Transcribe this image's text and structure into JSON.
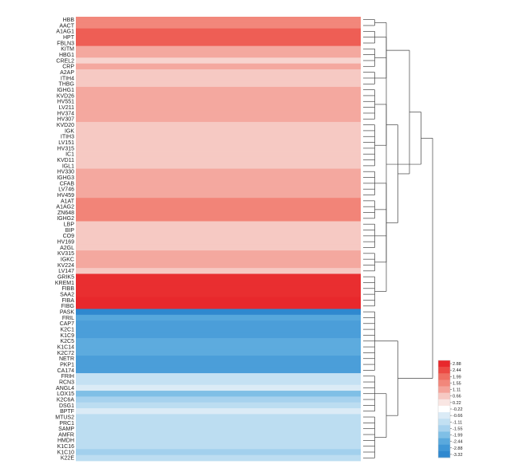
{
  "chart_data": {
    "type": "heatmap",
    "title": "",
    "xlabel": "",
    "ylabel": "",
    "dendrogram": "row",
    "rows": [
      {
        "label": "HBB",
        "value": 1.55
      },
      {
        "label": "AACT",
        "value": 1.55
      },
      {
        "label": "A1AG1",
        "value": 2.2
      },
      {
        "label": "HPT",
        "value": 2.2
      },
      {
        "label": "FBLN3",
        "value": 2.2
      },
      {
        "label": "KITM",
        "value": 1.05
      },
      {
        "label": "HBG1",
        "value": 1.05
      },
      {
        "label": "CREL2",
        "value": 0.5
      },
      {
        "label": "CRP",
        "value": 1.05
      },
      {
        "label": "A2AP",
        "value": 0.66
      },
      {
        "label": "ITIH4",
        "value": 0.66
      },
      {
        "label": "THBG",
        "value": 0.66
      },
      {
        "label": "IGHG1",
        "value": 1.05
      },
      {
        "label": "KVD26",
        "value": 1.05
      },
      {
        "label": "HV551",
        "value": 1.05
      },
      {
        "label": "LV211",
        "value": 1.05
      },
      {
        "label": "HV374",
        "value": 1.05
      },
      {
        "label": "HV307",
        "value": 1.05
      },
      {
        "label": "KVD20",
        "value": 0.66
      },
      {
        "label": "IGK",
        "value": 0.66
      },
      {
        "label": "ITIH3",
        "value": 0.66
      },
      {
        "label": "LV151",
        "value": 0.66
      },
      {
        "label": "HV315",
        "value": 0.66
      },
      {
        "label": "IC1",
        "value": 0.66
      },
      {
        "label": "KVD11",
        "value": 0.66
      },
      {
        "label": "IGL1",
        "value": 0.66
      },
      {
        "label": "HV330",
        "value": 1.05
      },
      {
        "label": "IGHG3",
        "value": 1.05
      },
      {
        "label": "CFAB",
        "value": 1.05
      },
      {
        "label": "LV746",
        "value": 1.05
      },
      {
        "label": "HV459",
        "value": 1.05
      },
      {
        "label": "A1AT",
        "value": 1.6
      },
      {
        "label": "A1AG2",
        "value": 1.6
      },
      {
        "label": "ZN648",
        "value": 1.6
      },
      {
        "label": "IGHG2",
        "value": 1.6
      },
      {
        "label": "LBP",
        "value": 0.66
      },
      {
        "label": "BIP",
        "value": 0.66
      },
      {
        "label": "CO9",
        "value": 0.66
      },
      {
        "label": "HV169",
        "value": 0.66
      },
      {
        "label": "A2GL",
        "value": 0.66
      },
      {
        "label": "KV315",
        "value": 1.05
      },
      {
        "label": "IGKC",
        "value": 1.05
      },
      {
        "label": "KV224",
        "value": 1.05
      },
      {
        "label": "LV147",
        "value": 0.66
      },
      {
        "label": "GRIK5",
        "value": 2.8
      },
      {
        "label": "KREM1",
        "value": 2.8
      },
      {
        "label": "FIBB",
        "value": 2.8
      },
      {
        "label": "SAA2",
        "value": 2.8
      },
      {
        "label": "FIBA",
        "value": 2.88
      },
      {
        "label": "FIBG",
        "value": 2.88
      },
      {
        "label": "PASK",
        "value": -3.32
      },
      {
        "label": "FRIL",
        "value": -2.5
      },
      {
        "label": "CAP7",
        "value": -2.7
      },
      {
        "label": "K2C1",
        "value": -2.7
      },
      {
        "label": "K1C9",
        "value": -2.7
      },
      {
        "label": "K2C5",
        "value": -2.4
      },
      {
        "label": "K1C14",
        "value": -2.4
      },
      {
        "label": "K2C72",
        "value": -2.4
      },
      {
        "label": "NETR",
        "value": -2.7
      },
      {
        "label": "PKP1",
        "value": -2.7
      },
      {
        "label": "CA174",
        "value": -2.7
      },
      {
        "label": "FRIH",
        "value": -1.05
      },
      {
        "label": "RCN3",
        "value": -1.05
      },
      {
        "label": "ANGL4",
        "value": -0.66
      },
      {
        "label": "LOX15",
        "value": -1.99
      },
      {
        "label": "K2C6A",
        "value": -1.55
      },
      {
        "label": "DSG1",
        "value": -1.2
      },
      {
        "label": "BPTF",
        "value": -0.66
      },
      {
        "label": "MTUS2",
        "value": -1.2
      },
      {
        "label": "PRC1",
        "value": -1.2
      },
      {
        "label": "SAMP",
        "value": -1.2
      },
      {
        "label": "AMFR",
        "value": -1.2
      },
      {
        "label": "HMDH",
        "value": -1.2
      },
      {
        "label": "K1C16",
        "value": -1.2
      },
      {
        "label": "K1C10",
        "value": -1.6
      },
      {
        "label": "K22E",
        "value": -1.2
      }
    ],
    "color_scale": {
      "ticks": [
        "2.88",
        "2.44",
        "1.99",
        "1.55",
        "1.11",
        "0.66",
        "0.22",
        "-0.22",
        "-0.66",
        "-1.11",
        "-1.55",
        "-1.99",
        "-2.44",
        "-2.88",
        "-3.32"
      ],
      "stops": [
        {
          "value": 2.88,
          "color": "#e8282c"
        },
        {
          "value": 2.44,
          "color": "#ec4a44"
        },
        {
          "value": 1.99,
          "color": "#ef6f63"
        },
        {
          "value": 1.55,
          "color": "#f2877b"
        },
        {
          "value": 1.11,
          "color": "#f4a39a"
        },
        {
          "value": 0.66,
          "color": "#f6c9c3"
        },
        {
          "value": 0.22,
          "color": "#f9e6e3"
        },
        {
          "value": -0.22,
          "color": "#ffffff"
        },
        {
          "value": -0.66,
          "color": "#dbebf6"
        },
        {
          "value": -1.11,
          "color": "#c2e0f2"
        },
        {
          "value": -1.55,
          "color": "#a7d2ee"
        },
        {
          "value": -1.99,
          "color": "#7fbfe6"
        },
        {
          "value": -2.44,
          "color": "#5aa9dd"
        },
        {
          "value": -2.88,
          "color": "#4097d6"
        },
        {
          "value": -3.32,
          "color": "#2f88cf"
        }
      ]
    },
    "legend_placement": "bottom-right"
  }
}
